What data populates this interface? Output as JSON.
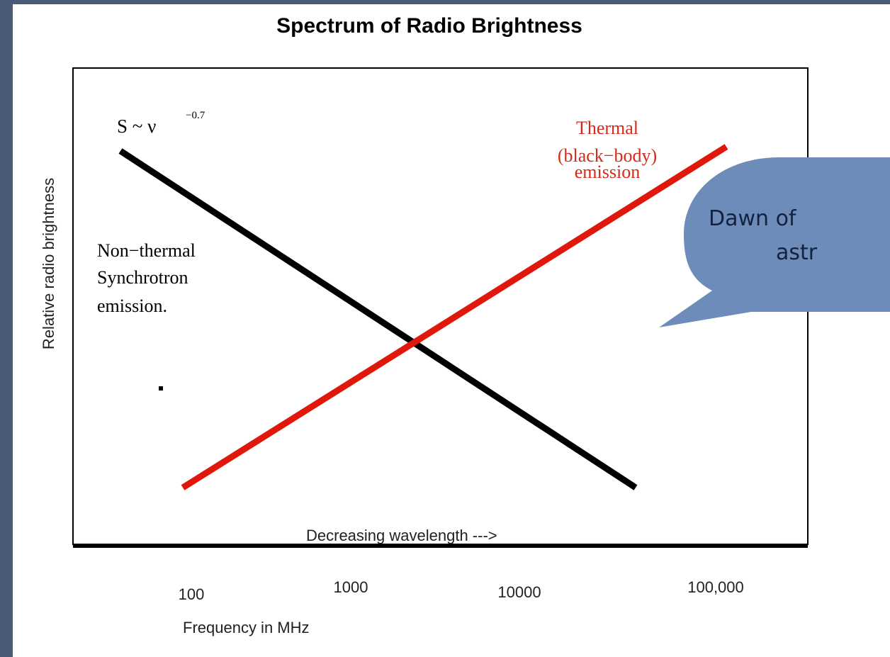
{
  "slide": {
    "chart": {
      "title": "Spectrum of Radio Brightness",
      "y_label": "Relative radio brightness",
      "x_label": "Frequency in MHz",
      "power_law": {
        "base": "S ~ ν",
        "exponent": "−0.7"
      },
      "thermal_label": [
        "Thermal",
        "(black−body)",
        "emission"
      ],
      "nonthermal_label": [
        "Non−thermal",
        "Synchrotron",
        "emission."
      ],
      "wavelength_note": "Decreasing wavelength --->",
      "x_tick_labels": [
        "100",
        "1000",
        "10000",
        "100,000"
      ]
    },
    "bubble": {
      "lines": [
        "Dawn of",
        "astr"
      ]
    }
  }
}
